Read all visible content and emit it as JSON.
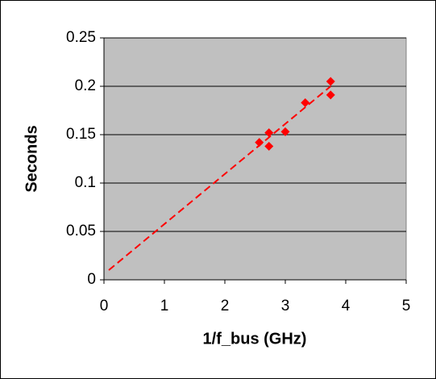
{
  "chart_data": {
    "type": "scatter",
    "x_label": "1/f_bus (GHz)",
    "y_label": "Seconds",
    "series": [
      {
        "color": "#ff0000",
        "x": [
          2.57,
          2.73,
          2.73,
          3.0,
          3.33,
          3.75,
          3.75
        ],
        "values": [
          0.142,
          0.152,
          0.138,
          0.153,
          0.183,
          0.205,
          0.191
        ]
      }
    ],
    "trendline": {
      "color": "#ff0000",
      "x": [
        0.08,
        3.75
      ],
      "values": [
        0.01,
        0.2
      ]
    },
    "xlim": [
      0,
      5
    ],
    "xticks": [
      0,
      1,
      2,
      3,
      4,
      5
    ],
    "ylim": [
      0,
      0.25
    ],
    "yticks": [
      0,
      0.05,
      0.1,
      0.15,
      0.2,
      0.25
    ],
    "grid": true,
    "plot_background": "#c0c0c0"
  }
}
